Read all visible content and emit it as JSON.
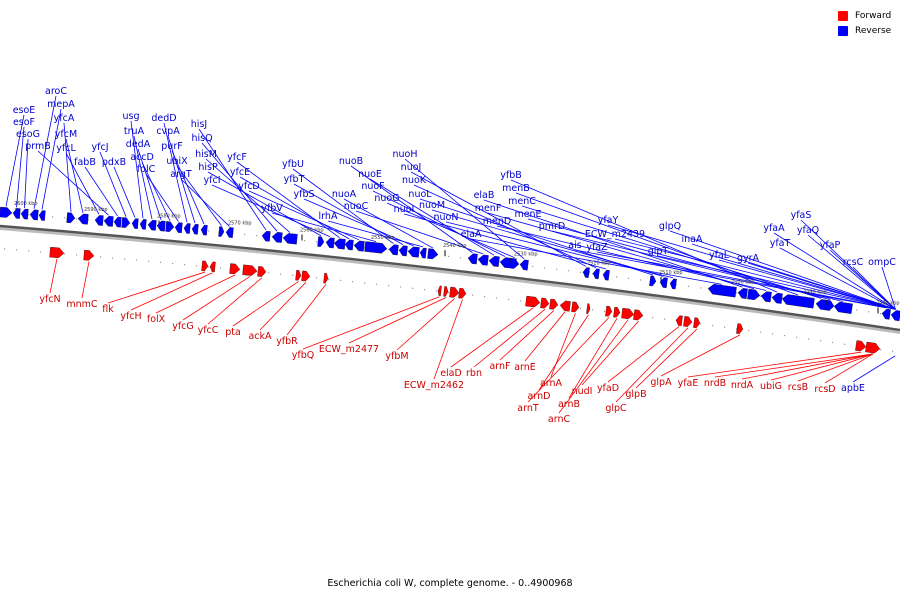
{
  "legend": {
    "forward_label": "Forward",
    "reverse_label": "Reverse",
    "forward_color": "#ff0000",
    "reverse_color": "#0000ff"
  },
  "footer": {
    "title": "Escherichia coli W, complete genome. - 0..4900968"
  },
  "backbone": {
    "ticks": [
      "2600 kbp",
      "2590 kbp",
      "2580 kbp",
      "2570 kbp",
      "2560 kbp",
      "2550 kbp",
      "2540 kbp",
      "2530 kbp",
      "2520 kbp",
      "2510 kbp",
      "2500 kbp",
      "2490 kbp",
      "2480 kbp"
    ]
  },
  "genes": {
    "reverse": [
      "esoE",
      "esoF",
      "esoG",
      "aroC",
      "mepA",
      "yfcA",
      "yfcM",
      "yfcL",
      "prmB",
      "fabB",
      "yfcJ",
      "pdxB",
      "usg",
      "truA",
      "dedA",
      "accD",
      "folC",
      "dedD",
      "cvpA",
      "purF",
      "ubiX",
      "argT",
      "hisJ",
      "hisQ",
      "hisM",
      "hisP",
      "yfcI",
      "yfcF",
      "yfcE",
      "yfcD",
      "yfbV",
      "yfbU",
      "yfbT",
      "yfbS",
      "lrhA",
      "nuoA",
      "nuoB",
      "nuoC",
      "nuoE",
      "nuoF",
      "nuoG",
      "nuoH",
      "nuoJ",
      "nuoK",
      "nuoI",
      "nuoL",
      "nuoM",
      "nuoN",
      "elaA",
      "elaB",
      "menF",
      "menD",
      "yfbB",
      "menB",
      "menC",
      "menE",
      "pmrD",
      "ais",
      "yfaZ",
      "yfaY",
      "ECW_m2439",
      "glpT",
      "glpQ",
      "inaA",
      "yfaL",
      "gyrA",
      "yfaA",
      "yfaT",
      "yfaS",
      "yfaQ",
      "yfaP",
      "rcsC",
      "ompC",
      "apbE"
    ],
    "forward": [
      "yfcN",
      "mnmC",
      "flk",
      "yfcH",
      "folX",
      "yfcG",
      "yfcC",
      "pta",
      "ackA",
      "yfbR",
      "yfbQ",
      "ECW_m2477",
      "yfbM",
      "ECW_m2462",
      "elaD",
      "rbn",
      "arnF",
      "arnE",
      "arnA",
      "arnD",
      "arnT",
      "arnB",
      "arnC",
      "nudI",
      "yfaD",
      "glpC",
      "glpB",
      "glpA",
      "yfaE",
      "nrdB",
      "nrdA",
      "ubiG",
      "rcsB",
      "rcsD"
    ]
  }
}
